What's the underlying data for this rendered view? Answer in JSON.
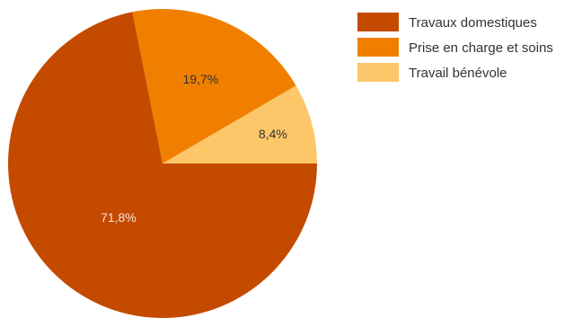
{
  "chart_data": {
    "type": "pie",
    "start": "3 o'clock",
    "direction": "counterclockwise",
    "legend_position": "top-right",
    "slices": [
      {
        "label": "Travaux domestiques",
        "value": 71.8,
        "display": "71,8%",
        "color": "#c44a00",
        "label_color": "#f3e3d6"
      },
      {
        "label": "Prise en charge et soins",
        "value": 19.7,
        "display": "19,7%",
        "color": "#f07f00",
        "label_color": "#333333"
      },
      {
        "label": "Travail bénévole",
        "value": 8.4,
        "display": "8,4%",
        "color": "#fdc769",
        "label_color": "#333333"
      }
    ]
  }
}
